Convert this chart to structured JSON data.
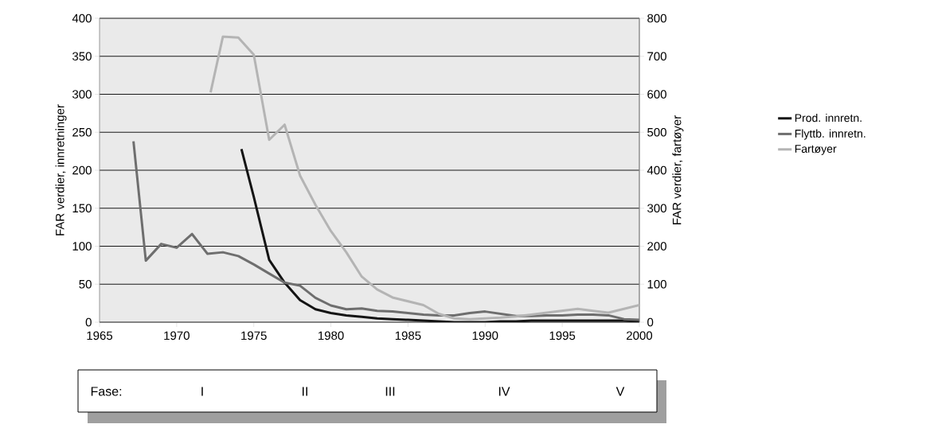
{
  "chart_data": {
    "type": "line",
    "xlim": [
      1965,
      2000
    ],
    "xticks": [
      1965,
      1970,
      1975,
      1980,
      1985,
      1990,
      1995,
      2000
    ],
    "ylim": [
      0,
      400
    ],
    "yticks": [
      0,
      50,
      100,
      150,
      200,
      250,
      300,
      350,
      400
    ],
    "y2lim": [
      0,
      800
    ],
    "y2ticks": [
      0,
      100,
      200,
      300,
      400,
      500,
      600,
      700,
      800
    ],
    "ylabel": "FAR verdier, innretninger",
    "y2label": "FAR verdier, fartøyer",
    "grid": "y",
    "legend": "right",
    "marker": "none",
    "line_style": "solid",
    "annotations": [
      "Fase:",
      "I",
      "II",
      "III",
      "IV",
      "V"
    ],
    "series": [
      {
        "name": "Prod. innretn.",
        "color": "#141414",
        "x": [
          1974.2,
          1975,
          1976,
          1977,
          1978,
          1979,
          1980,
          1981,
          1982,
          1983,
          1984,
          1985,
          1986,
          1987,
          1988,
          1989,
          1990,
          1991,
          1992,
          1993,
          1994,
          1995,
          1996,
          1997,
          1998,
          1999,
          2000
        ],
        "values": [
          228,
          165,
          82,
          52,
          29,
          17,
          12,
          9,
          7,
          5,
          4,
          3,
          2,
          1,
          0,
          0,
          0,
          1,
          1,
          2,
          2,
          2,
          2,
          2,
          2,
          2,
          1
        ]
      },
      {
        "name": "Flyttb. innretn.",
        "color": "#6e6e6e",
        "x": [
          1967.2,
          1968,
          1969,
          1970,
          1971,
          1972,
          1973,
          1974,
          1975,
          1976,
          1977,
          1978,
          1979,
          1980,
          1981,
          1982,
          1983,
          1984,
          1985,
          1986,
          1987,
          1988,
          1989,
          1990,
          1991,
          1992,
          1993,
          1994,
          1995,
          1996,
          1997,
          1998,
          1999,
          2000
        ],
        "values": [
          238,
          81,
          103,
          98,
          116,
          90,
          92,
          87,
          76,
          64,
          52,
          48,
          32,
          22,
          17,
          18,
          15,
          14,
          12,
          10,
          9,
          9,
          12,
          14,
          11,
          8,
          8,
          9,
          9,
          10,
          10,
          9,
          4,
          3
        ]
      },
      {
        "name": "Fartøyer",
        "color": "#b4b4b4",
        "axis": "y2",
        "x": [
          1972.2,
          1973,
          1974,
          1975,
          1976,
          1977,
          1978,
          1979,
          1980,
          1981,
          1982,
          1983,
          1984,
          1985,
          1986,
          1987,
          1988,
          1989,
          1990,
          1991,
          1992,
          1993,
          1994,
          1995,
          1996,
          1997,
          1998,
          1999,
          2000
        ],
        "values": [
          605,
          752,
          749,
          704,
          480,
          520,
          386,
          309,
          240,
          184,
          120,
          86,
          65,
          55,
          45,
          22,
          10,
          8,
          10,
          12,
          15,
          20,
          25,
          30,
          35,
          30,
          25,
          35,
          45
        ]
      }
    ]
  }
}
